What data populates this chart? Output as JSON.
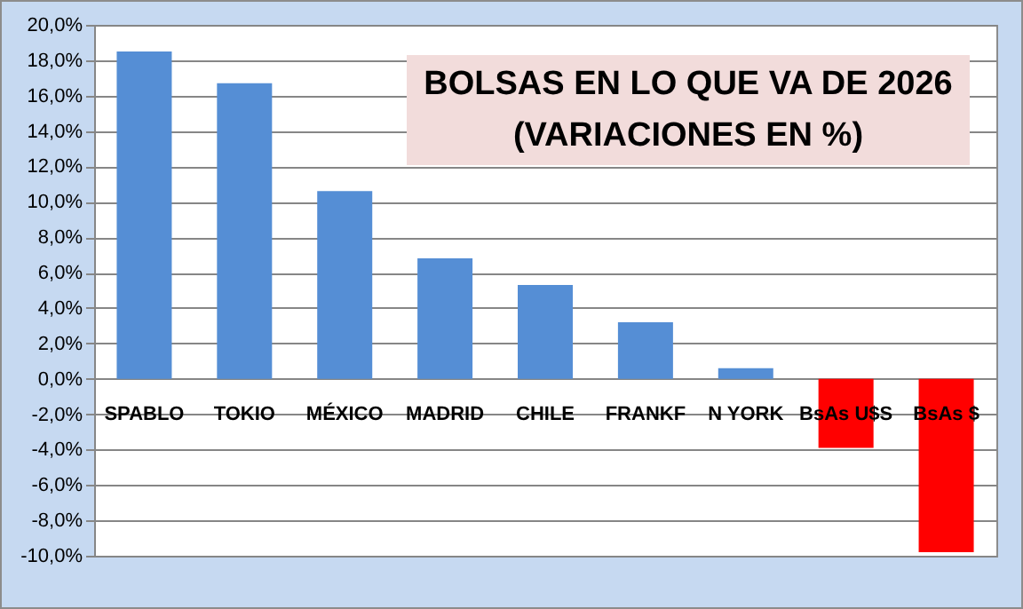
{
  "chart_data": {
    "type": "bar",
    "title": "BOLSAS EN LO QUE VA DE 2026\n(VARIACIONES EN %)",
    "categories": [
      "SPABLO",
      "TOKIO",
      "MÉXICO",
      "MADRID",
      "CHILE",
      "FRANKF",
      "N YORK",
      "BsAs U$S",
      "BsAs $"
    ],
    "values": [
      18.5,
      16.7,
      10.6,
      6.8,
      5.3,
      3.2,
      0.6,
      -3.9,
      -9.8
    ],
    "colors": [
      "#558ed5",
      "#558ed5",
      "#558ed5",
      "#558ed5",
      "#558ed5",
      "#558ed5",
      "#558ed5",
      "#ff0000",
      "#ff0000"
    ],
    "ylim": [
      -10,
      20
    ],
    "yticks": [
      {
        "value": -10,
        "label": "-10,0%"
      },
      {
        "value": -8,
        "label": "-8,0%"
      },
      {
        "value": -6,
        "label": "-6,0%"
      },
      {
        "value": -4,
        "label": "-4,0%"
      },
      {
        "value": -2,
        "label": "-2,0%"
      },
      {
        "value": 0,
        "label": "0,0%"
      },
      {
        "value": 2,
        "label": "2,0%"
      },
      {
        "value": 4,
        "label": "4,0%"
      },
      {
        "value": 6,
        "label": "6,0%"
      },
      {
        "value": 8,
        "label": "8,0%"
      },
      {
        "value": 10,
        "label": "10,0%"
      },
      {
        "value": 12,
        "label": "12,0%"
      },
      {
        "value": 14,
        "label": "14,0%"
      },
      {
        "value": 16,
        "label": "16,0%"
      },
      {
        "value": 18,
        "label": "18,0%"
      },
      {
        "value": 20,
        "label": "20,0%"
      }
    ],
    "grid": true
  }
}
